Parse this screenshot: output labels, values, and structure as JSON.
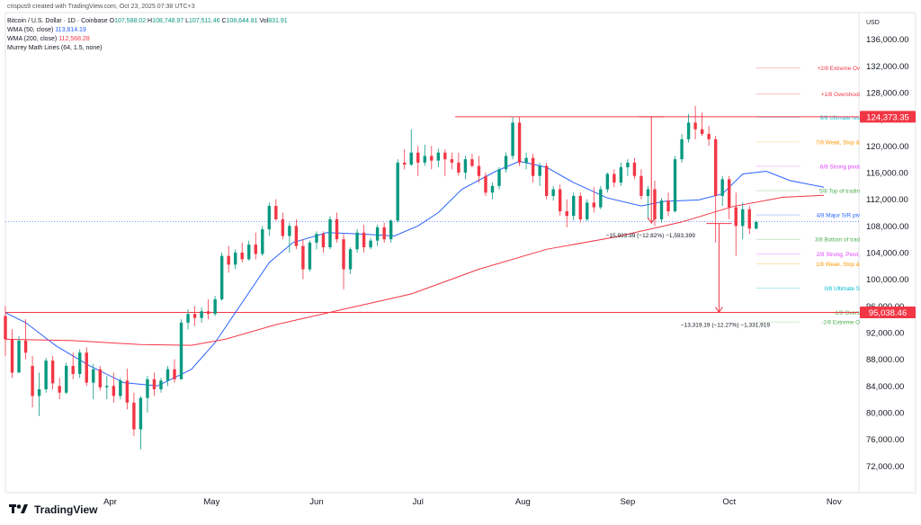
{
  "header": {
    "credit": "crispus9 created with TradingView.com, Oct 23, 2025 07:38 UTC+3",
    "symbol": "Bitcoin / U.S. Dollar · 1D · Coinbase",
    "ohlc": [
      {
        "key": "O",
        "value": "107,588.02"
      },
      {
        "key": "H",
        "value": "108,748.97"
      },
      {
        "key": "L",
        "value": "107,511.46"
      },
      {
        "key": "C",
        "value": "108,644.81"
      },
      {
        "key": "Vol",
        "value": "831.91"
      }
    ],
    "indicators": [
      {
        "name": "WMA (50, close)",
        "value": "113,814.19",
        "color": "#2962ff"
      },
      {
        "name": "WMA (200, close)",
        "value": "112,568.28",
        "color": "#f23645"
      },
      {
        "name": "Murrey Math Lines (64, 1.5, none)",
        "value": "",
        "color": "#131722"
      }
    ]
  },
  "footer": {
    "brand": "TradingView"
  },
  "chart_data": {
    "type": "candlestick",
    "currency_label": "USD",
    "ylim": [
      68000,
      140000
    ],
    "y_ticks": [
      72000,
      76000,
      80000,
      84000,
      88000,
      92000,
      96000,
      100000,
      104000,
      108000,
      112000,
      116000,
      120000,
      124000,
      128000,
      132000,
      136000
    ],
    "y_tick_labels": [
      "72,000.00",
      "76,000.00",
      "80,000.00",
      "84,000.00",
      "88,000.00",
      "92,000.00",
      "96,000.00",
      "100,000.00",
      "104,000.00",
      "108,000.00",
      "112,000.00",
      "116,000.00",
      "120,000.00",
      "124,000.00",
      "128,000.00",
      "132,000.00",
      "136,000.00"
    ],
    "x_range_days": [
      0,
      242
    ],
    "x_ticks": [
      {
        "label": "Apr",
        "day": 31
      },
      {
        "label": "May",
        "day": 61
      },
      {
        "label": "Jun",
        "day": 92
      },
      {
        "label": "Jul",
        "day": 122
      },
      {
        "label": "Aug",
        "day": 153
      },
      {
        "label": "Sep",
        "day": 184
      },
      {
        "label": "Oct",
        "day": 214
      },
      {
        "label": "Nov",
        "day": 245
      }
    ],
    "price_badges": [
      {
        "value": 124373.35,
        "label": "124,373.35",
        "color": "#f23645"
      },
      {
        "value": 95038.46,
        "label": "95,038.46",
        "color": "#f23645"
      }
    ],
    "current_price": 108644.81,
    "horizontal_lines": [
      {
        "value": 124373.35,
        "from_day": 133,
        "to_day": 242,
        "color": "#f23645"
      },
      {
        "value": 95038.46,
        "from_day": 0,
        "to_day": 242,
        "color": "#f23645"
      }
    ],
    "murrey_lines": [
      {
        "label": "+2/8 Extreme Ov",
        "value": 131700,
        "color": "#f23645"
      },
      {
        "label": "+1/8 Overshoot",
        "value": 127800,
        "color": "#f23645"
      },
      {
        "label": "8/8 Ultimate res",
        "value": 124300,
        "color": "#00bcd4"
      },
      {
        "label": "7/8 Weak, Stop &",
        "value": 120600,
        "color": "#ff9800"
      },
      {
        "label": "6/8 Strong pivot",
        "value": 116950,
        "color": "#e040fb"
      },
      {
        "label": "5/8 Top of tradin",
        "value": 113300,
        "color": "#4caf50"
      },
      {
        "label": "4/8 Major S/R piv",
        "value": 109650,
        "color": "#2962ff"
      },
      {
        "label": "3/8 Bottom of trad",
        "value": 106000,
        "color": "#4caf50"
      },
      {
        "label": "2/8 Strong, Pivot,",
        "value": 103800,
        "color": "#e040fb"
      },
      {
        "label": "1/8 Weak, Stop &",
        "value": 102300,
        "color": "#ff9800"
      },
      {
        "label": "0/8 Ultimate S",
        "value": 98700,
        "color": "#00bcd4"
      },
      {
        "label": "-1/8 Overs",
        "value": 95050,
        "color": "#4caf50"
      },
      {
        "label": "-2/8 Extreme O",
        "value": 93600,
        "color": "#4caf50"
      }
    ],
    "measurements": [
      {
        "label": "−15,933.99 (−12.82%) −1,593,399",
        "day": 191,
        "from": 124373,
        "to": 108440
      },
      {
        "label": "−13,319.19 (−12.27%) −1,331,919",
        "day": 211,
        "from": 108360,
        "to": 95040
      }
    ],
    "series": [
      {
        "name": "WMA (50, close)",
        "color": "#2962ff",
        "points": [
          [
            0,
            95000
          ],
          [
            6,
            93500
          ],
          [
            15,
            90000
          ],
          [
            25,
            87000
          ],
          [
            35,
            84500
          ],
          [
            45,
            84000
          ],
          [
            55,
            86500
          ],
          [
            62,
            90500
          ],
          [
            70,
            96500
          ],
          [
            78,
            102500
          ],
          [
            85,
            105500
          ],
          [
            95,
            107000
          ],
          [
            105,
            106800
          ],
          [
            115,
            106500
          ],
          [
            122,
            108000
          ],
          [
            128,
            110000
          ],
          [
            135,
            113500
          ],
          [
            145,
            116200
          ],
          [
            152,
            117700
          ],
          [
            160,
            116800
          ],
          [
            168,
            114500
          ],
          [
            178,
            112200
          ],
          [
            188,
            111000
          ],
          [
            195,
            111700
          ],
          [
            205,
            111900
          ],
          [
            212,
            112800
          ],
          [
            218,
            115800
          ],
          [
            225,
            116200
          ],
          [
            232,
            114800
          ],
          [
            242,
            113800
          ]
        ]
      },
      {
        "name": "WMA (200, close)",
        "color": "#f23645",
        "points": [
          [
            0,
            91000
          ],
          [
            20,
            90800
          ],
          [
            40,
            90200
          ],
          [
            55,
            90100
          ],
          [
            65,
            91000
          ],
          [
            80,
            93200
          ],
          [
            100,
            95500
          ],
          [
            120,
            97800
          ],
          [
            140,
            101500
          ],
          [
            160,
            104500
          ],
          [
            180,
            106300
          ],
          [
            200,
            108600
          ],
          [
            215,
            110900
          ],
          [
            230,
            112300
          ],
          [
            242,
            112600
          ]
        ]
      }
    ],
    "candles": [
      [
        0,
        94500,
        96000,
        88500,
        91000
      ],
      [
        2,
        91000,
        92500,
        85200,
        86000
      ],
      [
        4,
        86000,
        91500,
        86000,
        90800
      ],
      [
        6,
        90800,
        94000,
        88000,
        89000
      ],
      [
        8,
        87000,
        88500,
        80800,
        82500
      ],
      [
        10,
        82500,
        86000,
        79500,
        83500
      ],
      [
        12,
        83500,
        88200,
        83000,
        87800
      ],
      [
        14,
        87800,
        88500,
        83500,
        84400
      ],
      [
        16,
        84000,
        85200,
        82000,
        83000
      ],
      [
        18,
        83000,
        87500,
        82800,
        87000
      ],
      [
        20,
        87000,
        89000,
        85000,
        85800
      ],
      [
        22,
        85800,
        89500,
        85200,
        89000
      ],
      [
        24,
        89000,
        89800,
        84000,
        84500
      ],
      [
        26,
        84500,
        87300,
        82000,
        86500
      ],
      [
        28,
        86500,
        87000,
        83300,
        83800
      ],
      [
        30,
        83800,
        85500,
        82000,
        84000
      ],
      [
        32,
        84000,
        86000,
        81500,
        82500
      ],
      [
        34,
        82500,
        85200,
        82000,
        84800
      ],
      [
        36,
        84800,
        86600,
        80500,
        81500
      ],
      [
        38,
        81500,
        83000,
        76500,
        77500
      ],
      [
        40,
        77500,
        82500,
        74500,
        82200
      ],
      [
        42,
        82200,
        85500,
        80000,
        85000
      ],
      [
        44,
        85000,
        86000,
        82500,
        83500
      ],
      [
        46,
        83500,
        85200,
        83000,
        84800
      ],
      [
        48,
        84800,
        87000,
        84000,
        86500
      ],
      [
        50,
        86500,
        88000,
        84500,
        85000
      ],
      [
        52,
        85000,
        94000,
        85000,
        93500
      ],
      [
        54,
        93500,
        95500,
        92500,
        94800
      ],
      [
        56,
        94800,
        96000,
        93000,
        94200
      ],
      [
        58,
        94200,
        95800,
        93500,
        95200
      ],
      [
        60,
        95200,
        97000,
        94000,
        94800
      ],
      [
        62,
        94800,
        97500,
        94500,
        97000
      ],
      [
        64,
        97000,
        104000,
        96800,
        103500
      ],
      [
        66,
        103500,
        105000,
        101000,
        102200
      ],
      [
        68,
        102200,
        104500,
        101500,
        104000
      ],
      [
        70,
        104000,
        105500,
        102500,
        103000
      ],
      [
        72,
        103000,
        105800,
        102800,
        105200
      ],
      [
        74,
        105200,
        107000,
        103000,
        103800
      ],
      [
        76,
        103800,
        108000,
        103500,
        107500
      ],
      [
        78,
        107500,
        111500,
        106500,
        111000
      ],
      [
        80,
        111000,
        112000,
        108800,
        109000
      ],
      [
        82,
        109000,
        110000,
        106000,
        106500
      ],
      [
        84,
        106500,
        108500,
        104000,
        108000
      ],
      [
        86,
        108000,
        109000,
        104500,
        105000
      ],
      [
        88,
        105000,
        106000,
        100000,
        101500
      ],
      [
        90,
        101500,
        105800,
        101200,
        105500
      ],
      [
        92,
        105500,
        107200,
        104500,
        106800
      ],
      [
        94,
        106800,
        107200,
        104000,
        104800
      ],
      [
        96,
        104800,
        109500,
        104500,
        109000
      ],
      [
        98,
        109000,
        110000,
        105500,
        106000
      ],
      [
        100,
        106000,
        106800,
        98500,
        101500
      ],
      [
        102,
        101500,
        104800,
        100800,
        104500
      ],
      [
        104,
        104500,
        107500,
        104000,
        107000
      ],
      [
        106,
        107000,
        108200,
        104000,
        104800
      ],
      [
        108,
        104800,
        106200,
        104500,
        105800
      ],
      [
        110,
        105800,
        108200,
        105000,
        107800
      ],
      [
        112,
        107800,
        108500,
        105500,
        106000
      ],
      [
        114,
        106000,
        109000,
        105500,
        108800
      ],
      [
        116,
        108800,
        118000,
        108500,
        117500
      ],
      [
        118,
        117500,
        119500,
        116500,
        117200
      ],
      [
        120,
        117200,
        122500,
        117000,
        119000
      ],
      [
        122,
        119000,
        120000,
        115500,
        117500
      ],
      [
        124,
        117500,
        120200,
        117000,
        118500
      ],
      [
        126,
        118500,
        120000,
        116500,
        117800
      ],
      [
        128,
        117800,
        119600,
        116800,
        119000
      ],
      [
        130,
        119000,
        119500,
        115500,
        118000
      ],
      [
        132,
        118000,
        119000,
        116500,
        117500
      ],
      [
        134,
        117500,
        119000,
        115500,
        116000
      ],
      [
        136,
        116000,
        118500,
        115000,
        118000
      ],
      [
        138,
        118000,
        118800,
        116800,
        117000
      ],
      [
        140,
        117000,
        118500,
        114500,
        115500
      ],
      [
        142,
        115500,
        116000,
        112500,
        113000
      ],
      [
        144,
        113000,
        114500,
        112000,
        114000
      ],
      [
        146,
        114000,
        116800,
        113500,
        116500
      ],
      [
        148,
        116500,
        119000,
        116000,
        118500
      ],
      [
        150,
        118500,
        124300,
        118000,
        123500
      ],
      [
        152,
        123500,
        124400,
        117000,
        117500
      ],
      [
        154,
        117500,
        119000,
        116500,
        118200
      ],
      [
        156,
        118200,
        118800,
        114500,
        115500
      ],
      [
        158,
        115500,
        117500,
        114000,
        117000
      ],
      [
        160,
        117000,
        117500,
        112000,
        112500
      ],
      [
        162,
        112500,
        114000,
        111800,
        113500
      ],
      [
        164,
        113500,
        114200,
        109500,
        110200
      ],
      [
        166,
        110200,
        112000,
        107800,
        109500
      ],
      [
        168,
        109500,
        113000,
        108800,
        112500
      ],
      [
        170,
        112500,
        113000,
        108500,
        109000
      ],
      [
        172,
        109000,
        112000,
        108700,
        111500
      ],
      [
        174,
        111500,
        113800,
        110000,
        110800
      ],
      [
        176,
        110800,
        114000,
        110500,
        113500
      ],
      [
        178,
        113500,
        116000,
        113000,
        115800
      ],
      [
        180,
        115800,
        116500,
        113800,
        114500
      ],
      [
        182,
        114500,
        117500,
        114000,
        116800
      ],
      [
        184,
        116800,
        118000,
        115500,
        117500
      ],
      [
        186,
        117500,
        118200,
        115000,
        115500
      ],
      [
        188,
        115500,
        116500,
        112000,
        112500
      ],
      [
        190,
        112500,
        114000,
        109000,
        113500
      ],
      [
        192,
        113500,
        114800,
        108000,
        109000
      ],
      [
        194,
        109000,
        112200,
        108500,
        111800
      ],
      [
        196,
        111800,
        113000,
        109500,
        110200
      ],
      [
        198,
        110200,
        118500,
        110000,
        118000
      ],
      [
        200,
        118000,
        121800,
        117500,
        121000
      ],
      [
        202,
        121000,
        124800,
        120500,
        123500
      ],
      [
        204,
        123500,
        126000,
        121000,
        122500
      ],
      [
        206,
        122500,
        125000,
        121500,
        121800
      ],
      [
        208,
        121800,
        123000,
        120000,
        121000
      ],
      [
        210,
        121000,
        121500,
        105500,
        112500
      ],
      [
        212,
        112500,
        115500,
        111000,
        115000
      ],
      [
        214,
        115000,
        115500,
        109000,
        110800
      ],
      [
        216,
        110800,
        113000,
        103500,
        108000
      ],
      [
        218,
        108000,
        111500,
        106000,
        110500
      ],
      [
        220,
        110500,
        111000,
        106800,
        107600
      ],
      [
        222,
        107600,
        108800,
        107500,
        108600
      ]
    ]
  }
}
